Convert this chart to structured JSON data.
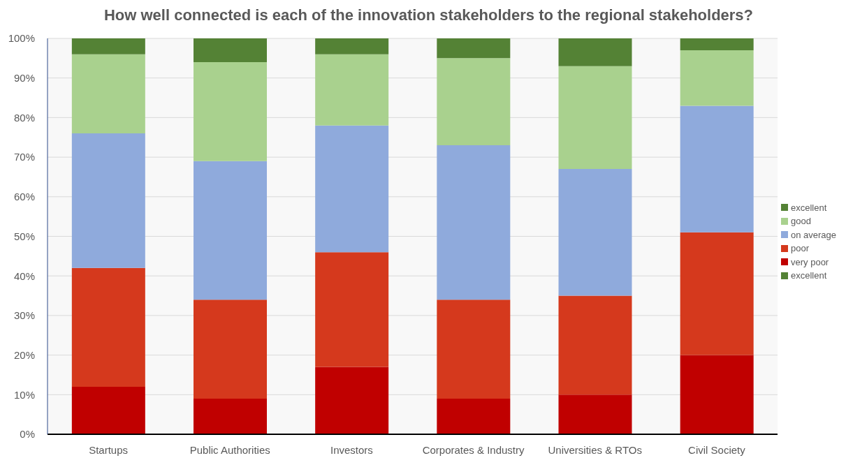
{
  "chart_data": {
    "type": "bar",
    "title": "How well connected is each of the innovation stakeholders to the regional stakeholders?",
    "categories": [
      "Startups",
      "Public Authorities",
      "Investors",
      "Corporates & Industry",
      "Universities & RTOs",
      "Civil Society"
    ],
    "stacked": true,
    "series": [
      {
        "name": "excellent",
        "color": "#548235",
        "values": [
          null,
          null,
          null,
          null,
          null,
          null
        ]
      },
      {
        "name": "very poor",
        "color": "#c00000",
        "values": [
          12,
          9,
          17,
          9,
          10,
          20
        ]
      },
      {
        "name": "poor",
        "color": "#d5391d",
        "values": [
          30,
          25,
          29,
          25,
          25,
          31
        ]
      },
      {
        "name": "on average",
        "color": "#8faadc",
        "values": [
          34,
          35,
          32,
          39,
          32,
          32
        ]
      },
      {
        "name": "good",
        "color": "#a9d18e",
        "values": [
          20,
          25,
          18,
          22,
          26,
          14
        ]
      },
      {
        "name": "excellent",
        "color": "#548235",
        "values": [
          4,
          6,
          4,
          5,
          7,
          3
        ]
      }
    ],
    "ylim": [
      0,
      100
    ],
    "yticks": [
      {
        "value": 0,
        "label": "0%"
      },
      {
        "value": 10,
        "label": "10%"
      },
      {
        "value": 20,
        "label": "20%"
      },
      {
        "value": 30,
        "label": "30%"
      },
      {
        "value": 40,
        "label": "40%"
      },
      {
        "value": 50,
        "label": "50%"
      },
      {
        "value": 60,
        "label": "60%"
      },
      {
        "value": 70,
        "label": "70%"
      },
      {
        "value": 80,
        "label": "80%"
      },
      {
        "value": 90,
        "label": "90%"
      },
      {
        "value": 100,
        "label": "100%"
      }
    ],
    "grid": "y",
    "legend": "right"
  }
}
